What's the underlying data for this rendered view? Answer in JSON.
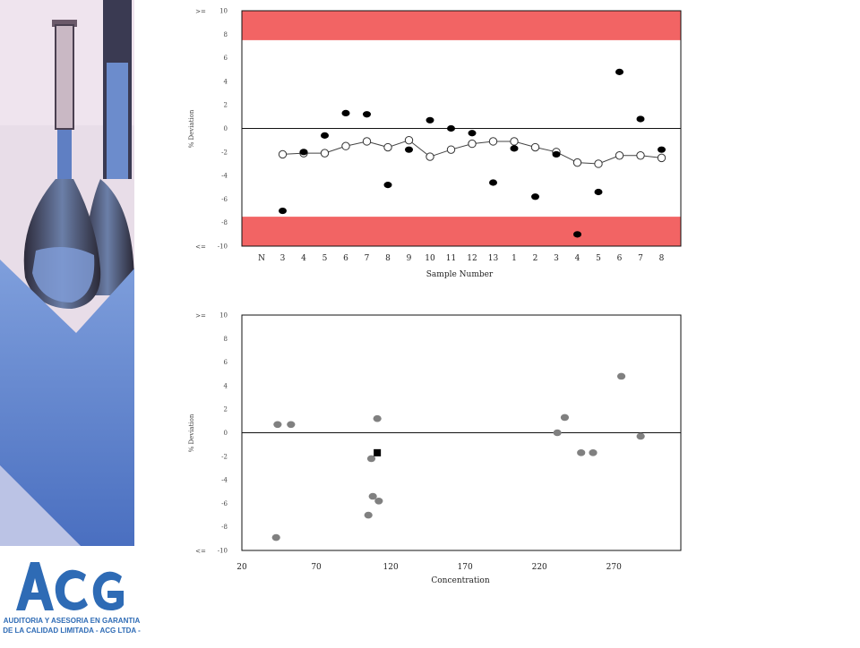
{
  "branding": {
    "logo_text": "ACG",
    "logo_caption_line1": "AUDITORIA Y ASESORIA EN GARANTIA",
    "logo_caption_line2": "DE LA CALIDAD LIMITADA - ACG LTDA -"
  },
  "colors": {
    "control_band": "#f26464",
    "sidebar_purple": "#c9b9d6",
    "sidebar_blue": "#5f80c4",
    "logo_blue": "#2e6bb5",
    "dot_black": "#000000",
    "dot_gray": "#808080"
  },
  "chart_data": [
    {
      "type": "scatter",
      "xlabel": "Sample Number",
      "ylabel": "% Deviation",
      "ylim": [
        -10,
        10
      ],
      "yticks": [
        10,
        8,
        6,
        4,
        2,
        0,
        -2,
        -4,
        -6,
        -8,
        -10
      ],
      "ytick_labels": [
        "10",
        "8",
        "6",
        "4",
        "2",
        "0",
        "-2",
        "-4",
        "-6",
        "-8",
        "-10"
      ],
      "y_top_label": ">=",
      "y_bottom_label": "<=",
      "categories": [
        "N",
        "3",
        "4",
        "5",
        "6",
        "7",
        "8",
        "9",
        "10",
        "11",
        "12",
        "13",
        "1",
        "2",
        "3",
        "4",
        "5",
        "6",
        "7",
        "8"
      ],
      "bands": [
        {
          "from": 7.5,
          "to": 10
        },
        {
          "from": -10,
          "to": -7.5
        }
      ],
      "zero_line": true,
      "series": [
        {
          "marker": "filled",
          "values": [
            null,
            -7.0,
            -2.0,
            -0.6,
            1.3,
            1.2,
            -4.8,
            -1.8,
            0.7,
            0.0,
            -0.4,
            -4.6,
            -1.7,
            -5.8,
            -2.2,
            -9.0,
            -5.4,
            4.8,
            0.8,
            -1.8
          ]
        },
        {
          "marker": "open",
          "line": true,
          "values": [
            null,
            -2.2,
            -2.1,
            -2.1,
            -1.5,
            -1.1,
            -1.6,
            -1.0,
            -2.4,
            -1.8,
            -1.3,
            -1.1,
            -1.1,
            -1.6,
            -2.0,
            -2.9,
            -3.0,
            -2.3,
            -2.3,
            -2.5
          ]
        }
      ]
    },
    {
      "type": "scatter",
      "xlabel": "Concentration",
      "ylabel": "% Deviation",
      "xlim": [
        20,
        315
      ],
      "xticks": [
        20,
        70,
        120,
        170,
        220,
        270
      ],
      "ylim": [
        -10,
        10
      ],
      "yticks": [
        10,
        8,
        6,
        4,
        2,
        0,
        -2,
        -4,
        -6,
        -8,
        -10
      ],
      "ytick_labels": [
        "10",
        "8",
        "6",
        "4",
        "2",
        "0",
        "-2",
        "-4",
        "-6",
        "-8",
        "-10"
      ],
      "y_top_label": ">=",
      "y_bottom_label": "<=",
      "zero_line": true,
      "series": [
        {
          "marker": "gray-dot",
          "points": [
            [
              44,
              0.7
            ],
            [
              53,
              0.7
            ],
            [
              43,
              -8.9
            ],
            [
              111,
              1.2
            ],
            [
              107,
              -2.2
            ],
            [
              108,
              -5.4
            ],
            [
              112,
              -5.8
            ],
            [
              105,
              -7.0
            ],
            [
              232,
              0.0
            ],
            [
              237,
              1.3
            ],
            [
              248,
              -1.7
            ],
            [
              256,
              -1.7
            ],
            [
              275,
              4.8
            ],
            [
              288,
              -0.3
            ]
          ]
        },
        {
          "marker": "black-square",
          "points": [
            [
              111,
              -1.7
            ]
          ]
        }
      ]
    }
  ]
}
